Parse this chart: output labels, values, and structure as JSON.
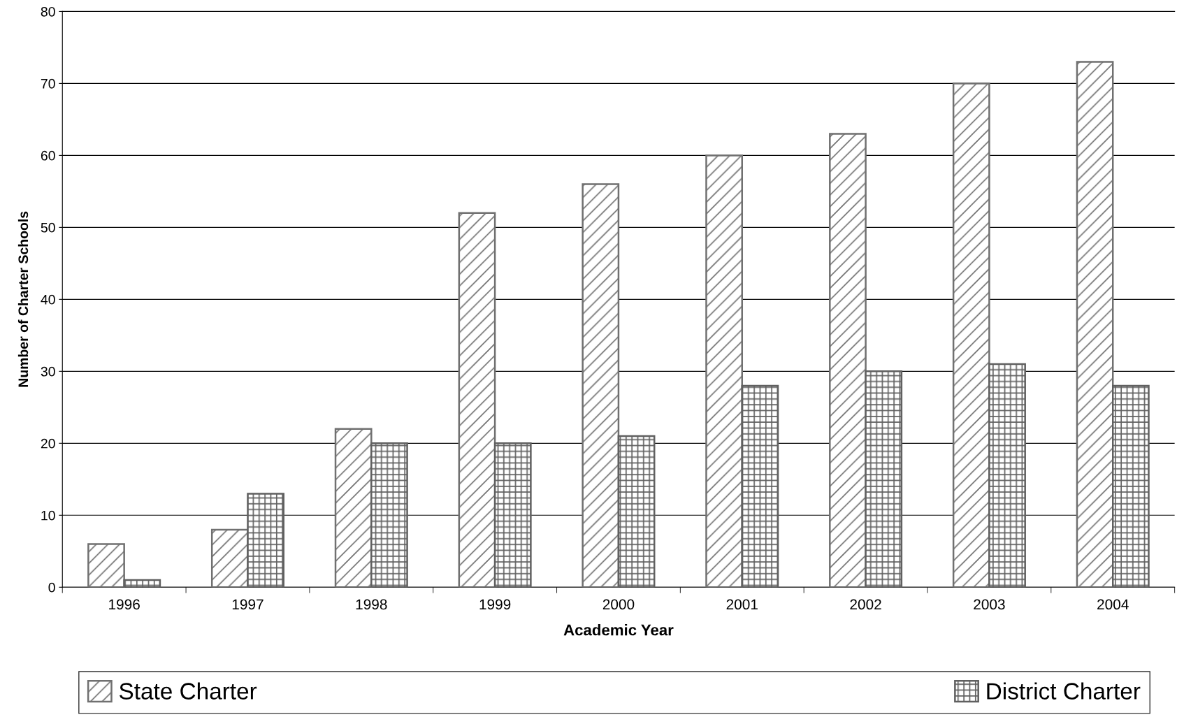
{
  "chart_data": {
    "type": "bar",
    "xlabel": "Academic Year",
    "ylabel": "Number of Charter Schools",
    "categories": [
      "1996",
      "1997",
      "1998",
      "1999",
      "2000",
      "2001",
      "2002",
      "2003",
      "2004"
    ],
    "series": [
      {
        "name": "State Charter",
        "color": "#707070",
        "values": [
          6,
          8,
          22,
          52,
          56,
          60,
          63,
          70,
          73
        ]
      },
      {
        "name": "District Charter",
        "color": "#606060",
        "values": [
          1,
          13,
          20,
          20,
          21,
          28,
          30,
          31,
          28
        ]
      }
    ],
    "ylim": [
      0,
      80
    ],
    "yticks": [
      0,
      10,
      20,
      30,
      40,
      50,
      60,
      70,
      80
    ],
    "grid": "y",
    "legend": "bottom"
  }
}
